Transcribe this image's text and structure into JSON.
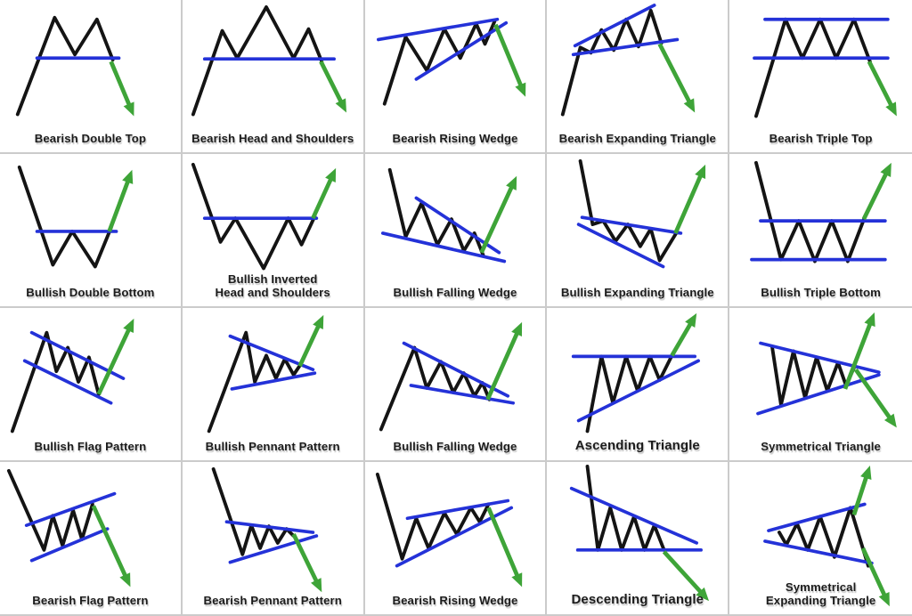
{
  "sheet": {
    "description": "Chart pattern cheat sheet grid",
    "grid": {
      "rows": 4,
      "columns": 5
    }
  },
  "colors": {
    "background": "#ffffff",
    "cell_border": "#cbcbcb",
    "price_line": "#141414",
    "trend_line": "#2432d8",
    "arrow": "#3ea438",
    "label_text": "#1c1c1c"
  },
  "cells": [
    {
      "name": "bearish-double-top",
      "label_line1": "Bearish Double Top",
      "label_line2": "",
      "arrow_direction": "down"
    },
    {
      "name": "bearish-head-and-shoulders",
      "label_line1": "Bearish Head and Shoulders",
      "label_line2": "",
      "arrow_direction": "down"
    },
    {
      "name": "bearish-rising-wedge",
      "label_line1": "Bearish Rising Wedge",
      "label_line2": "",
      "arrow_direction": "down"
    },
    {
      "name": "bearish-expanding-triangle",
      "label_line1": "Bearish Expanding Triangle",
      "label_line2": "",
      "arrow_direction": "down"
    },
    {
      "name": "bearish-triple-top",
      "label_line1": "Bearish Triple Top",
      "label_line2": "",
      "arrow_direction": "down"
    },
    {
      "name": "bullish-double-bottom",
      "label_line1": "Bullish Double Bottom",
      "label_line2": "",
      "arrow_direction": "up"
    },
    {
      "name": "bullish-inverted-head-and-shoulders",
      "label_line1": "Bullish Inverted",
      "label_line2": "Head and Shoulders",
      "arrow_direction": "up"
    },
    {
      "name": "bullish-falling-wedge",
      "label_line1": "Bullish Falling Wedge",
      "label_line2": "",
      "arrow_direction": "up"
    },
    {
      "name": "bullish-expanding-triangle",
      "label_line1": "Bullish Expanding Triangle",
      "label_line2": "",
      "arrow_direction": "up"
    },
    {
      "name": "bullish-triple-bottom",
      "label_line1": "Bullish Triple Bottom",
      "label_line2": "",
      "arrow_direction": "up"
    },
    {
      "name": "bullish-flag-pattern",
      "label_line1": "Bullish Flag Pattern",
      "label_line2": "",
      "arrow_direction": "up"
    },
    {
      "name": "bullish-pennant-pattern",
      "label_line1": "Bullish Pennant Pattern",
      "label_line2": "",
      "arrow_direction": "up"
    },
    {
      "name": "bullish-falling-wedge-2",
      "label_line1": "Bullish Falling Wedge",
      "label_line2": "",
      "arrow_direction": "up"
    },
    {
      "name": "ascending-triangle",
      "label_line1": "Ascending Triangle",
      "label_line2": "",
      "arrow_direction": "up"
    },
    {
      "name": "symmetrical-triangle",
      "label_line1": "Symmetrical Triangle",
      "label_line2": "",
      "arrow_direction": "up-and-down"
    },
    {
      "name": "bearish-flag-pattern",
      "label_line1": "Bearish Flag Pattern",
      "label_line2": "",
      "arrow_direction": "down"
    },
    {
      "name": "bearish-pennant-pattern",
      "label_line1": "Bearish Pennant Pattern",
      "label_line2": "",
      "arrow_direction": "down"
    },
    {
      "name": "bearish-rising-wedge-2",
      "label_line1": "Bearish Rising Wedge",
      "label_line2": "",
      "arrow_direction": "down"
    },
    {
      "name": "descending-triangle",
      "label_line1": "Descending Triangle",
      "label_line2": "",
      "arrow_direction": "down"
    },
    {
      "name": "symmetrical-expanding-triangle",
      "label_line1": "Symmetrical",
      "label_line2": "Expanding Triangle",
      "arrow_direction": "up-and-down"
    }
  ]
}
